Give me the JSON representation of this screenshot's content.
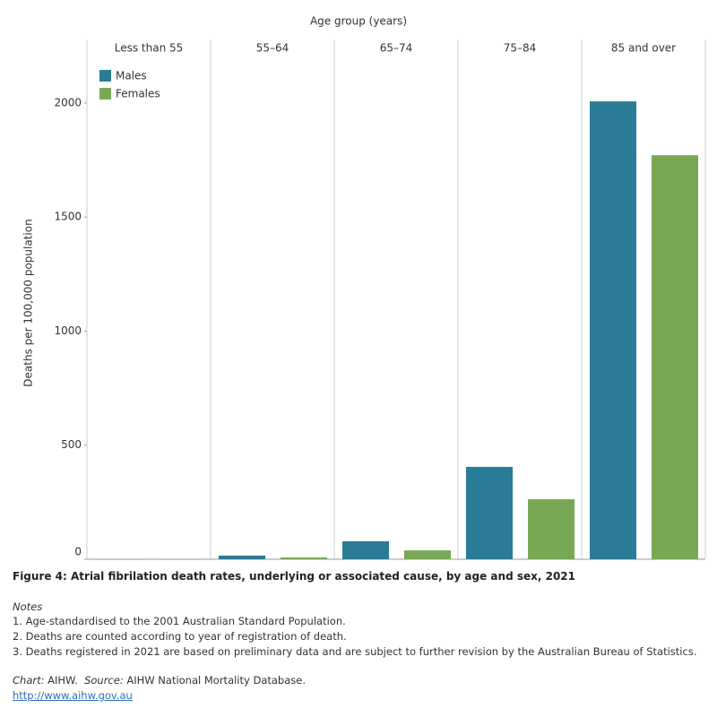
{
  "chart_data": {
    "type": "bar",
    "title": "Figure 4: Atrial fibrilation death rates, underlying or associated cause, by age and sex, 2021",
    "x_axis_label": "Age group (years)",
    "y_axis_label": "Deaths per 100,000 population",
    "categories": [
      "Less than 55",
      "55–64",
      "65–74",
      "75–84",
      "85 and over"
    ],
    "series": [
      {
        "name": "Males",
        "color": "#2a7b96",
        "values": [
          0.5,
          16,
          79,
          405,
          2007
        ]
      },
      {
        "name": "Females",
        "color": "#78a856",
        "values": [
          0.3,
          8,
          39,
          263,
          1771
        ]
      }
    ],
    "ylim": [
      0,
      2200
    ],
    "yticks": [
      0,
      500,
      1000,
      1500,
      2000
    ],
    "legend": "top-left"
  },
  "notes": {
    "heading": "Notes",
    "items": [
      "1. Age-standardised to the 2001 Australian Standard Population.",
      "2. Deaths are counted according to year of registration of death.",
      "3. Deaths registered in 2021 are based on preliminary data and are subject to further revision by the Australian Bureau of Statistics."
    ]
  },
  "source": {
    "chart_label": "Chart:",
    "chart": "AIHW.",
    "source_label": "Source:",
    "source": "AIHW National Mortality Database.",
    "link": "http://www.aihw.gov.au"
  }
}
